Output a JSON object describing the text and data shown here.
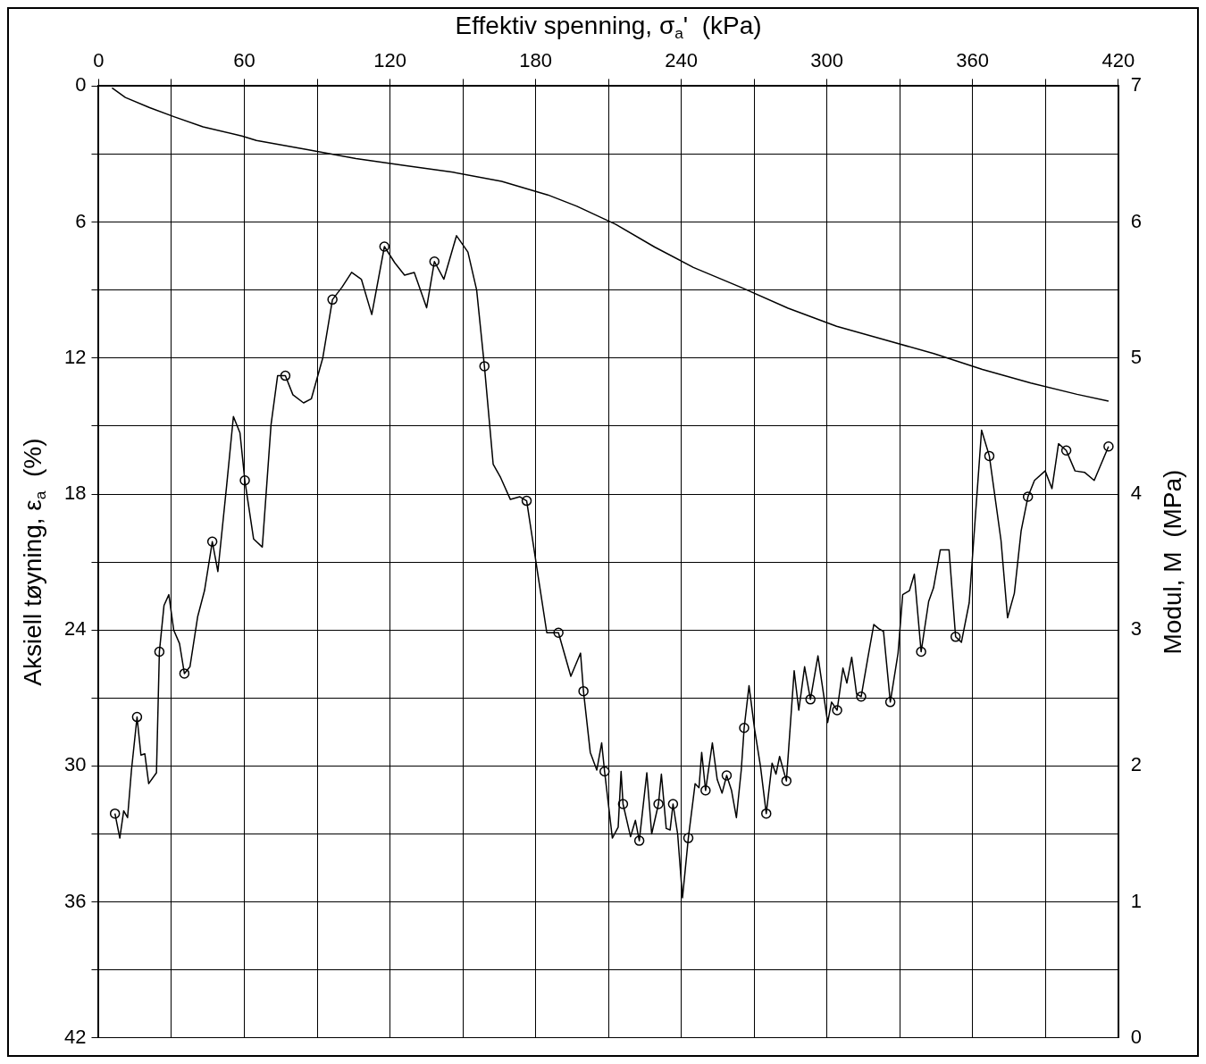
{
  "chart_data": {
    "type": "line",
    "xlabel": "Effektiv spenning, σ$_{a}$'  (kPa)",
    "ylabel": "Aksiell tøyning, ε$_{a}$  (%)",
    "y2label": "Modul, M  (MPa)",
    "xlim": [
      0,
      420
    ],
    "xticks": [
      0,
      {
        "value": 30,
        "label": null
      },
      60,
      {
        "value": 90,
        "label": null
      },
      120,
      {
        "value": 150,
        "label": null
      },
      180,
      {
        "value": 210,
        "label": null
      },
      240,
      {
        "value": 270,
        "label": null
      },
      300,
      {
        "value": 330,
        "label": null
      },
      360,
      {
        "value": 390,
        "label": null
      },
      420
    ],
    "ylim": [
      42,
      0
    ],
    "yticks": [
      0,
      {
        "value": 3,
        "label": null
      },
      6,
      {
        "value": 9,
        "label": null
      },
      12,
      {
        "value": 15,
        "label": null
      },
      18,
      {
        "value": 21,
        "label": null
      },
      24,
      {
        "value": 27,
        "label": null
      },
      30,
      {
        "value": 33,
        "label": null
      },
      36,
      {
        "value": 39,
        "label": null
      },
      42
    ],
    "y2lim": [
      0,
      7
    ],
    "y2ticks": [
      0,
      1,
      2,
      3,
      4,
      5,
      6,
      7
    ],
    "grid": true,
    "legend": false,
    "series": [
      {
        "color": "#000000",
        "marker": "none",
        "x": [
          5.5,
          11,
          21,
          31,
          43,
          59,
          65,
          86,
          106,
          126,
          146,
          166,
          185,
          197,
          213,
          229,
          245,
          265,
          284,
          304,
          324,
          344,
          364,
          384,
          403,
          416
        ],
        "values": [
          0.08,
          0.5,
          0.95,
          1.35,
          1.8,
          2.2,
          2.4,
          2.8,
          3.2,
          3.5,
          3.8,
          4.2,
          4.8,
          5.3,
          6.1,
          7.1,
          8.0,
          8.9,
          9.8,
          10.6,
          11.2,
          11.8,
          12.5,
          13.1,
          13.6,
          13.9
        ]
      },
      {
        "axis": "y2",
        "color": "#000000",
        "marker": "none",
        "x": [
          6.7,
          8.7,
          10.3,
          11.9,
          13.5,
          15.8,
          17.4,
          19.0,
          20.6,
          23.8,
          25.0,
          26.9,
          28.9,
          30.9,
          33.3,
          35.3,
          37.6,
          40.8,
          43.6,
          46.8,
          49.1,
          52.7,
          55.5,
          58.2,
          60.2,
          63.8,
          67.4,
          71.0,
          73.7,
          76.9,
          80.0,
          84.4,
          87.6,
          92.3,
          96.3,
          100.2,
          104.2,
          108.2,
          112.5,
          117.7,
          122.0,
          126.0,
          130.0,
          135.1,
          138.3,
          142.2,
          147.4,
          152.1,
          155.7,
          158.9,
          162.5,
          165.6,
          169.6,
          173.5,
          176.3,
          181.5,
          184.6,
          189.4,
          194.5,
          198.5,
          199.7,
          202.5,
          205.2,
          207.2,
          208.4,
          211.6,
          214.0,
          215.2,
          216.0,
          219.1,
          221.1,
          222.7,
          225.8,
          227.8,
          230.6,
          231.8,
          233.8,
          235.4,
          236.6,
          238.5,
          240.5,
          242.9,
          245.7,
          247.3,
          248.4,
          250.0,
          252.8,
          254.8,
          256.8,
          258.7,
          260.7,
          262.7,
          264.7,
          265.9,
          267.9,
          270.2,
          272.6,
          275.0,
          277.4,
          279.0,
          280.5,
          283.3,
          286.5,
          288.4,
          290.8,
          293.2,
          296.3,
          300.3,
          301.9,
          304.2,
          306.6,
          308.2,
          310.2,
          312.2,
          314.1,
          316.9,
          319.3,
          321.3,
          323.3,
          326.1,
          329.3,
          331.2,
          334.0,
          336.0,
          338.8,
          341.9,
          343.9,
          346.7,
          350.3,
          353.0,
          355.4,
          358.6,
          363.7,
          366.9,
          371.7,
          374.4,
          377.2,
          380.0,
          382.8,
          385.5,
          389.9,
          392.7,
          395.4,
          398.6,
          402.2,
          406.1,
          410.1,
          416.0
        ],
        "values": [
          1.65,
          1.47,
          1.67,
          1.62,
          1.97,
          2.36,
          2.08,
          2.09,
          1.87,
          1.95,
          2.84,
          3.18,
          3.26,
          3.0,
          2.9,
          2.68,
          2.73,
          3.1,
          3.29,
          3.65,
          3.43,
          4.06,
          4.57,
          4.45,
          4.1,
          3.67,
          3.61,
          4.51,
          4.87,
          4.87,
          4.73,
          4.67,
          4.7,
          5.0,
          5.43,
          5.52,
          5.63,
          5.58,
          5.32,
          5.82,
          5.7,
          5.61,
          5.63,
          5.37,
          5.71,
          5.58,
          5.9,
          5.78,
          5.5,
          4.94,
          4.22,
          4.12,
          3.96,
          3.98,
          3.95,
          3.34,
          2.98,
          2.98,
          2.66,
          2.83,
          2.55,
          2.1,
          1.97,
          2.17,
          1.96,
          1.47,
          1.55,
          1.96,
          1.72,
          1.48,
          1.6,
          1.45,
          1.95,
          1.5,
          1.72,
          1.94,
          1.54,
          1.53,
          1.72,
          1.5,
          1.03,
          1.47,
          1.87,
          1.84,
          2.1,
          1.82,
          2.17,
          1.9,
          1.8,
          1.93,
          1.82,
          1.62,
          1.97,
          2.28,
          2.59,
          2.27,
          2.0,
          1.65,
          2.02,
          1.94,
          2.07,
          1.89,
          2.7,
          2.41,
          2.73,
          2.49,
          2.81,
          2.32,
          2.47,
          2.41,
          2.72,
          2.61,
          2.8,
          2.53,
          2.51,
          2.8,
          3.04,
          3.01,
          2.99,
          2.47,
          2.83,
          3.26,
          3.29,
          3.41,
          2.84,
          3.21,
          3.31,
          3.59,
          3.59,
          2.95,
          2.91,
          3.2,
          4.47,
          4.28,
          3.66,
          3.09,
          3.27,
          3.73,
          3.98,
          4.1,
          4.17,
          4.04,
          4.37,
          4.32,
          4.17,
          4.16,
          4.1,
          4.35
        ]
      },
      {
        "type": "scatter",
        "axis": "y2",
        "color": "#000000",
        "marker": "circle",
        "x": [
          6.7,
          15.8,
          25.0,
          35.3,
          46.8,
          60.2,
          76.9,
          96.3,
          117.7,
          138.3,
          158.9,
          176.3,
          189.4,
          199.7,
          208.4,
          216.0,
          222.7,
          230.6,
          236.6,
          242.9,
          250.0,
          258.7,
          265.9,
          275.0,
          283.3,
          293.2,
          304.2,
          314.1,
          326.1,
          338.8,
          353.0,
          366.9,
          382.8,
          398.6,
          416.0
        ],
        "values": [
          1.65,
          2.36,
          2.84,
          2.68,
          3.65,
          4.1,
          4.87,
          5.43,
          5.82,
          5.71,
          4.94,
          3.95,
          2.98,
          2.55,
          1.96,
          1.72,
          1.45,
          1.72,
          1.72,
          1.47,
          1.82,
          1.93,
          2.28,
          1.65,
          1.89,
          2.49,
          2.41,
          2.51,
          2.47,
          2.84,
          2.95,
          4.28,
          3.98,
          4.32,
          4.35
        ]
      }
    ]
  }
}
